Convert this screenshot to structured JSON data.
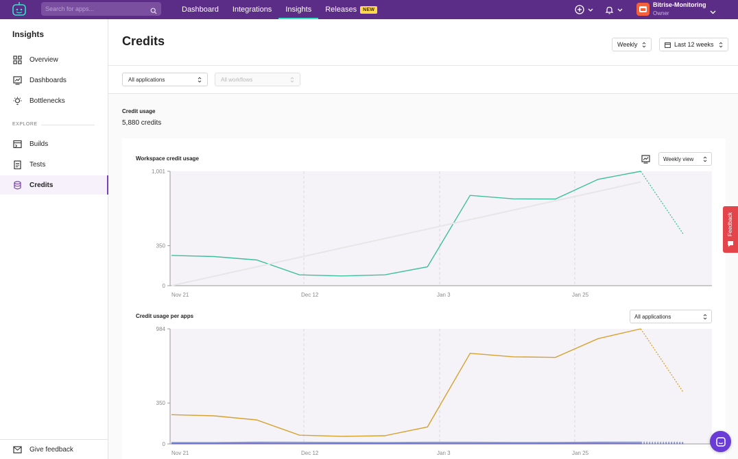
{
  "topbar": {
    "search_placeholder": "Search for apps...",
    "nav": [
      {
        "label": "Dashboard"
      },
      {
        "label": "Integrations"
      },
      {
        "label": "Insights"
      },
      {
        "label": "Releases",
        "badge": "NEW"
      }
    ],
    "active_nav": "Insights",
    "workspace": {
      "name": "Bitrise-Monitoring",
      "role": "Owner"
    }
  },
  "sidebar": {
    "title": "Insights",
    "items": [
      {
        "label": "Overview",
        "icon": "grid-icon"
      },
      {
        "label": "Dashboards",
        "icon": "chart-monitor-icon"
      },
      {
        "label": "Bottlenecks",
        "icon": "lightbulb-icon"
      }
    ],
    "section_label": "EXPLORE",
    "explore_items": [
      {
        "label": "Builds",
        "icon": "builds-icon"
      },
      {
        "label": "Tests",
        "icon": "tests-icon"
      },
      {
        "label": "Credits",
        "icon": "database-icon",
        "active": true
      }
    ],
    "give_feedback": "Give feedback"
  },
  "main": {
    "title": "Credits",
    "period_label": "Weekly",
    "range_label": "Last 12 weeks",
    "filters": {
      "apps": "All applications",
      "workflows": "All workflows"
    },
    "credit_usage_label": "Credit usage",
    "credit_usage_value": "5,880 credits"
  },
  "charts": {
    "workspace_title": "Workspace credit usage",
    "workspace_view": "Weekly view",
    "per_app_title": "Credit usage per apps",
    "per_app_filter": "All applications"
  },
  "feedback_tab": "Feedback",
  "colors": {
    "brand": "#5c2d86",
    "accent": "#2ee6c6",
    "series_green": "#3dbf9b",
    "series_gold": "#d6a12e",
    "series_blue": "#6a8fe0",
    "feedback": "#e4454b"
  },
  "chart_data": [
    {
      "type": "line",
      "title": "Workspace credit usage",
      "x_ticks": [
        "Nov 21",
        "Dec 12",
        "Jan 3",
        "Jan 25"
      ],
      "y_ticks": [
        "0",
        "350",
        "1,001"
      ],
      "ylim": [
        0,
        1001
      ],
      "grid": "vertical dashed",
      "series": [
        {
          "values": [
            265,
            255,
            225,
            95,
            85,
            95,
            165,
            790,
            760,
            758,
            930,
            1001,
            450
          ],
          "projected_last": true
        },
        {
          "values": [
            0,
            83,
            165,
            248,
            330,
            413,
            495,
            578,
            660,
            743,
            825,
            908
          ],
          "trend": true
        }
      ]
    },
    {
      "type": "line",
      "title": "Credit usage per apps",
      "x_ticks": [
        "Nov 21",
        "Dec 12",
        "Jan 3",
        "Jan 25"
      ],
      "y_ticks": [
        "0",
        "350",
        "984"
      ],
      "ylim": [
        0,
        984
      ],
      "grid": "vertical dashed",
      "series": [
        {
          "values": [
            250,
            240,
            205,
            75,
            65,
            70,
            145,
            775,
            745,
            740,
            900,
            984,
            440
          ],
          "projected_last": true
        },
        {
          "values": [
            12,
            12,
            15,
            14,
            13,
            12,
            14,
            14,
            13,
            13,
            15,
            15,
            14
          ],
          "projected_last": true
        },
        {
          "values": [
            5,
            6,
            8,
            6,
            5,
            5,
            6,
            6,
            7,
            6,
            7,
            6,
            6
          ],
          "projected_last": true
        },
        {
          "values": [
            2,
            2,
            3,
            2,
            2,
            2,
            2,
            2,
            2,
            2,
            3,
            2,
            2
          ],
          "projected_last": true
        }
      ]
    }
  ]
}
